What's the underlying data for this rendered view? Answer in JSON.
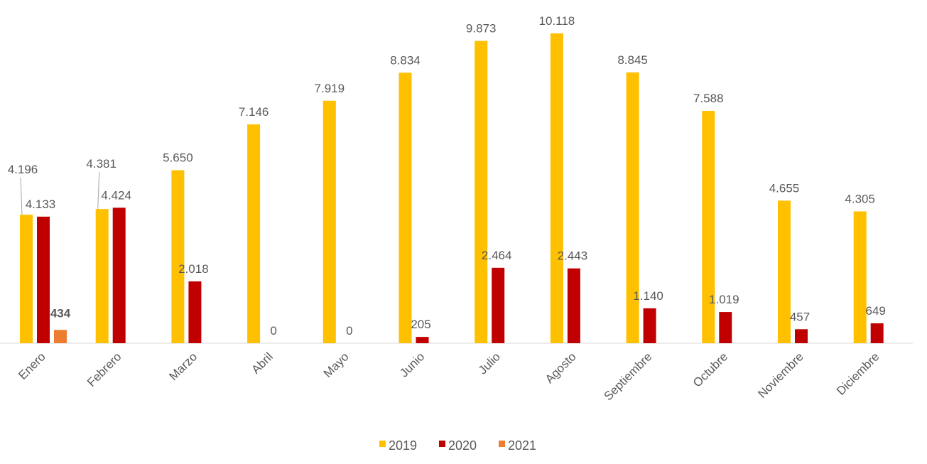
{
  "chart_data": {
    "type": "bar",
    "title": "",
    "xlabel": "",
    "ylabel": "",
    "ylim": [
      0,
      10118
    ],
    "grid": false,
    "legend_position": "bottom",
    "categories": [
      "Enero",
      "Febrero",
      "Marzo",
      "Abril",
      "Mayo",
      "Junio",
      "Julio",
      "Agosto",
      "Septiembre",
      "Octubre",
      "Noviembre",
      "Diciembre"
    ],
    "series": [
      {
        "name": "2019",
        "color": "#FFC000",
        "values": [
          4196,
          4381,
          5650,
          7146,
          7919,
          8834,
          9873,
          10118,
          8845,
          7588,
          4655,
          4305
        ],
        "labels": [
          "4.196",
          "4.381",
          "5.650",
          "7.146",
          "7.919",
          "8.834",
          "9.873",
          "10.118",
          "8.845",
          "7.588",
          "4.655",
          "4.305"
        ]
      },
      {
        "name": "2020",
        "color": "#C00000",
        "values": [
          4133,
          4424,
          2018,
          0,
          0,
          205,
          2464,
          2443,
          1140,
          1019,
          457,
          649
        ],
        "labels": [
          "4.133",
          "4.424",
          "2.018",
          "0",
          "0",
          "205",
          "2.464",
          "2.443",
          "1.140",
          "1.019",
          "457",
          "649"
        ]
      },
      {
        "name": "2021",
        "color": "#ED7D31",
        "values": [
          434,
          null,
          null,
          null,
          null,
          null,
          null,
          null,
          null,
          null,
          null,
          null
        ],
        "labels": [
          "434",
          "",
          "",
          "",
          "",
          "",
          "",
          "",
          "",
          "",
          "",
          ""
        ]
      }
    ]
  }
}
